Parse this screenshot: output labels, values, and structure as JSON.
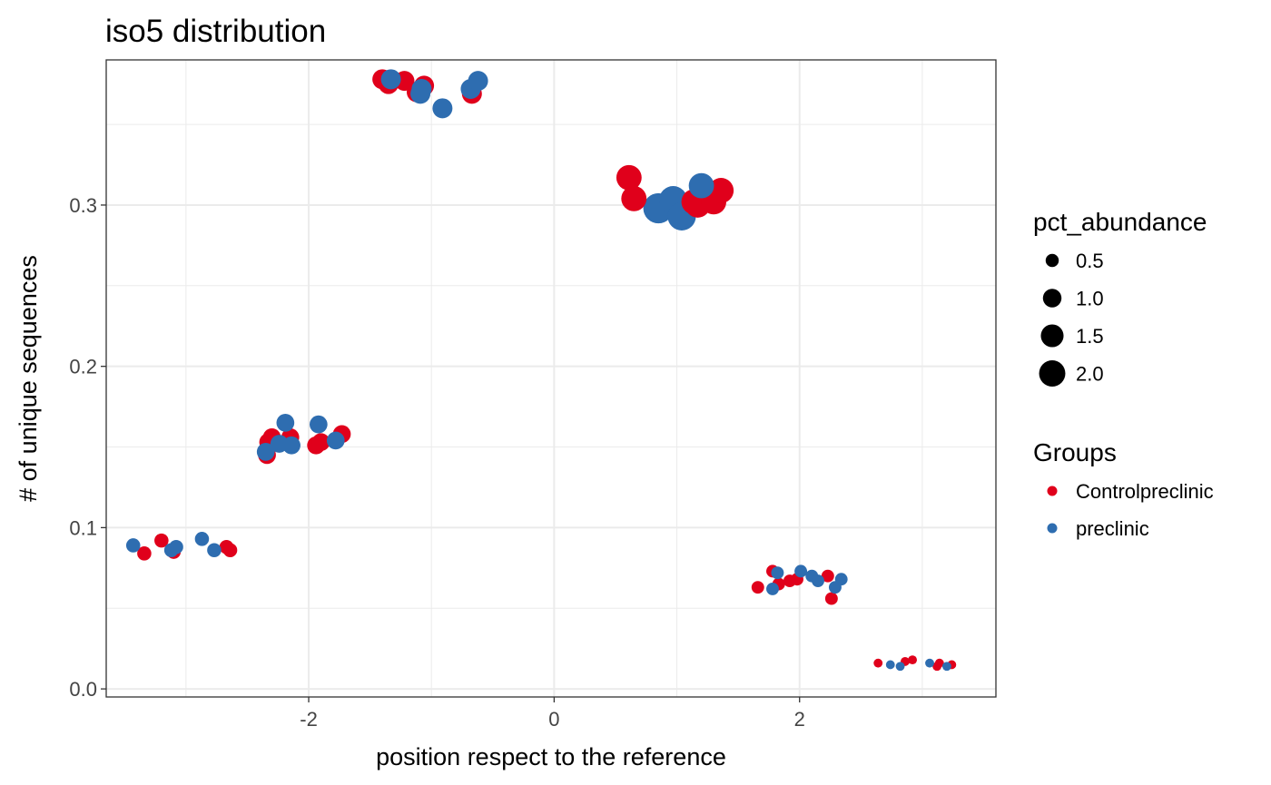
{
  "colors": {
    "Controlpreclinic": "#e0001b",
    "preclinic": "#2e6db0",
    "grid": "#ebebeb",
    "border": "#333333",
    "legend_size_key": "#000000"
  },
  "chart_data": {
    "type": "scatter",
    "title": "iso5 distribution",
    "xlabel": "position respect to the reference",
    "ylabel": "# of unique sequences",
    "xlim": [
      -3.65,
      3.6
    ],
    "ylim": [
      -0.005,
      0.39
    ],
    "x_ticks": [
      -2,
      0,
      2
    ],
    "x_tick_labels": [
      "-2",
      "0",
      "2"
    ],
    "y_ticks": [
      0.0,
      0.1,
      0.2,
      0.3
    ],
    "y_tick_labels": [
      "0.0",
      "0.1",
      "0.2",
      "0.3"
    ],
    "grid": true,
    "legend_placement": "right",
    "size_legend": {
      "title": "pct_abundance",
      "values": [
        0.5,
        1.0,
        1.5,
        2.0
      ],
      "labels": [
        "0.5",
        "1.0",
        "1.5",
        "2.0"
      ]
    },
    "color_legend": {
      "title": "Groups",
      "labels": [
        "Controlpreclinic",
        "preclinic"
      ]
    },
    "series": [
      {
        "name": "Controlpreclinic",
        "points": [
          {
            "x": -3.34,
            "y": 0.084,
            "size": 0.5
          },
          {
            "x": -3.2,
            "y": 0.092,
            "size": 0.5
          },
          {
            "x": -3.1,
            "y": 0.085,
            "size": 0.5
          },
          {
            "x": -2.67,
            "y": 0.088,
            "size": 0.5
          },
          {
            "x": -2.64,
            "y": 0.086,
            "size": 0.5
          },
          {
            "x": -2.34,
            "y": 0.145,
            "size": 0.8
          },
          {
            "x": -2.33,
            "y": 0.153,
            "size": 0.8
          },
          {
            "x": -2.3,
            "y": 0.156,
            "size": 0.8
          },
          {
            "x": -2.15,
            "y": 0.156,
            "size": 0.8
          },
          {
            "x": -1.94,
            "y": 0.151,
            "size": 0.8
          },
          {
            "x": -1.9,
            "y": 0.153,
            "size": 0.8
          },
          {
            "x": -1.73,
            "y": 0.158,
            "size": 0.8
          },
          {
            "x": -1.4,
            "y": 0.378,
            "size": 1.0
          },
          {
            "x": -1.35,
            "y": 0.375,
            "size": 1.0
          },
          {
            "x": -1.22,
            "y": 0.377,
            "size": 1.0
          },
          {
            "x": -1.12,
            "y": 0.37,
            "size": 1.0
          },
          {
            "x": -1.06,
            "y": 0.374,
            "size": 1.0
          },
          {
            "x": -0.67,
            "y": 0.369,
            "size": 1.0
          },
          {
            "x": 0.61,
            "y": 0.317,
            "size": 1.6
          },
          {
            "x": 0.65,
            "y": 0.304,
            "size": 1.6
          },
          {
            "x": 1.14,
            "y": 0.302,
            "size": 1.6
          },
          {
            "x": 1.17,
            "y": 0.3,
            "size": 1.6
          },
          {
            "x": 1.3,
            "y": 0.302,
            "size": 1.6
          },
          {
            "x": 1.36,
            "y": 0.309,
            "size": 1.6
          },
          {
            "x": 1.66,
            "y": 0.063,
            "size": 0.4
          },
          {
            "x": 1.78,
            "y": 0.073,
            "size": 0.4
          },
          {
            "x": 1.83,
            "y": 0.065,
            "size": 0.4
          },
          {
            "x": 1.92,
            "y": 0.067,
            "size": 0.4
          },
          {
            "x": 1.98,
            "y": 0.068,
            "size": 0.4
          },
          {
            "x": 2.23,
            "y": 0.07,
            "size": 0.4
          },
          {
            "x": 2.26,
            "y": 0.056,
            "size": 0.4
          },
          {
            "x": 2.64,
            "y": 0.016,
            "size": 0.2
          },
          {
            "x": 2.86,
            "y": 0.017,
            "size": 0.2
          },
          {
            "x": 2.92,
            "y": 0.018,
            "size": 0.2
          },
          {
            "x": 3.12,
            "y": 0.014,
            "size": 0.2
          },
          {
            "x": 3.14,
            "y": 0.016,
            "size": 0.2
          },
          {
            "x": 3.24,
            "y": 0.015,
            "size": 0.2
          }
        ]
      },
      {
        "name": "preclinic",
        "points": [
          {
            "x": -3.43,
            "y": 0.089,
            "size": 0.5
          },
          {
            "x": -3.12,
            "y": 0.086,
            "size": 0.5
          },
          {
            "x": -3.08,
            "y": 0.088,
            "size": 0.5
          },
          {
            "x": -2.87,
            "y": 0.093,
            "size": 0.5
          },
          {
            "x": -2.77,
            "y": 0.086,
            "size": 0.5
          },
          {
            "x": -2.35,
            "y": 0.147,
            "size": 0.8
          },
          {
            "x": -2.24,
            "y": 0.152,
            "size": 0.8
          },
          {
            "x": -2.19,
            "y": 0.165,
            "size": 0.8
          },
          {
            "x": -2.14,
            "y": 0.151,
            "size": 0.8
          },
          {
            "x": -1.92,
            "y": 0.164,
            "size": 0.8
          },
          {
            "x": -1.78,
            "y": 0.154,
            "size": 0.8
          },
          {
            "x": -1.33,
            "y": 0.378,
            "size": 1.0
          },
          {
            "x": -1.08,
            "y": 0.372,
            "size": 1.0
          },
          {
            "x": -1.09,
            "y": 0.369,
            "size": 1.0
          },
          {
            "x": -0.91,
            "y": 0.36,
            "size": 1.0
          },
          {
            "x": -0.68,
            "y": 0.372,
            "size": 1.0
          },
          {
            "x": -0.62,
            "y": 0.377,
            "size": 1.0
          },
          {
            "x": 0.85,
            "y": 0.298,
            "size": 2.3
          },
          {
            "x": 0.97,
            "y": 0.303,
            "size": 2.0
          },
          {
            "x": 1.04,
            "y": 0.293,
            "size": 2.0
          },
          {
            "x": 1.2,
            "y": 0.312,
            "size": 1.6
          },
          {
            "x": 1.78,
            "y": 0.062,
            "size": 0.4
          },
          {
            "x": 1.82,
            "y": 0.072,
            "size": 0.4
          },
          {
            "x": 2.01,
            "y": 0.073,
            "size": 0.4
          },
          {
            "x": 2.1,
            "y": 0.07,
            "size": 0.4
          },
          {
            "x": 2.15,
            "y": 0.067,
            "size": 0.4
          },
          {
            "x": 2.29,
            "y": 0.063,
            "size": 0.4
          },
          {
            "x": 2.34,
            "y": 0.068,
            "size": 0.4
          },
          {
            "x": 2.74,
            "y": 0.015,
            "size": 0.2
          },
          {
            "x": 2.82,
            "y": 0.014,
            "size": 0.2
          },
          {
            "x": 3.06,
            "y": 0.016,
            "size": 0.2
          },
          {
            "x": 3.2,
            "y": 0.014,
            "size": 0.2
          }
        ]
      }
    ]
  }
}
